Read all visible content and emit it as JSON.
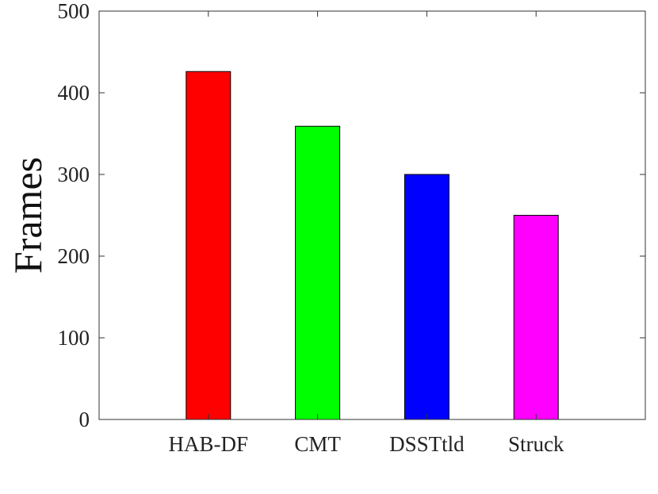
{
  "chart_data": {
    "type": "bar",
    "title": "",
    "xlabel": "",
    "ylabel": "Frames",
    "categories": [
      "HAB-DF",
      "CMT",
      "DSSTtld",
      "Struck"
    ],
    "values": [
      426,
      359,
      300,
      250
    ],
    "colors": [
      "#ff0000",
      "#00ff00",
      "#0000ff",
      "#ff00ff"
    ],
    "ylim": [
      0,
      500
    ],
    "yticks": [
      0,
      100,
      200,
      300,
      400,
      500
    ],
    "grid": false,
    "legend": "none"
  }
}
